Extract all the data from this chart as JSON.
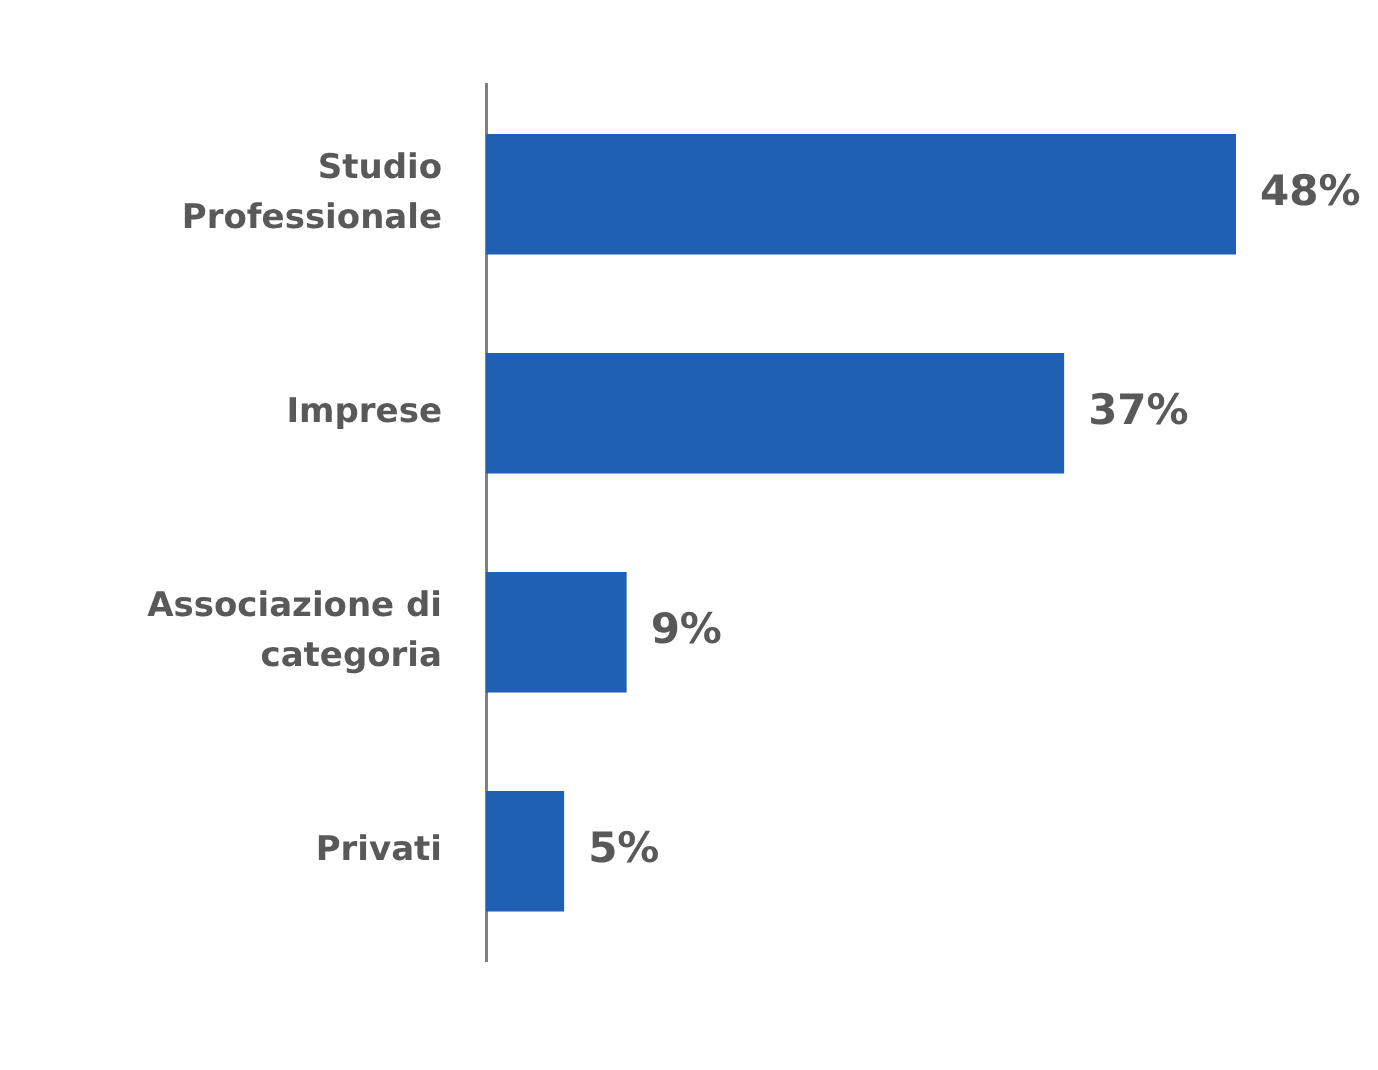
{
  "chart_data": {
    "type": "bar",
    "orientation": "horizontal",
    "categories": [
      "Studio Professionale",
      "Imprese",
      "Associazione di categoria",
      "Privati"
    ],
    "values": [
      48,
      37,
      9,
      5
    ],
    "color": "#1f5fb4",
    "value_labels": [
      "48%",
      "37%",
      "9%",
      "5%"
    ],
    "xlim": [
      0,
      48
    ],
    "tick_labels": "y"
  }
}
